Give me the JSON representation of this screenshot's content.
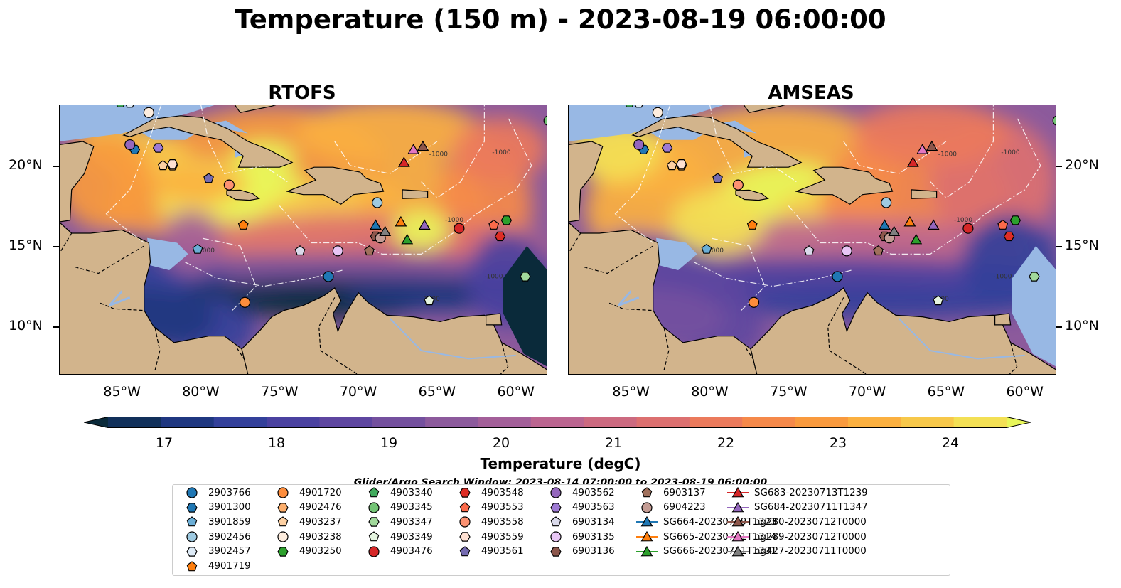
{
  "title": "Temperature (150 m) - 2023-08-19 06:00:00",
  "panels": [
    {
      "title": "RTOFS",
      "variant": "rtofs"
    },
    {
      "title": "AMSEAS",
      "variant": "amseas"
    }
  ],
  "x_ticks": [
    "85°W",
    "80°W",
    "75°W",
    "70°W",
    "65°W",
    "60°W"
  ],
  "x_tick_lons": [
    -85,
    -80,
    -75,
    -70,
    -65,
    -60
  ],
  "y_ticks": [
    "20°N",
    "15°N",
    "10°N"
  ],
  "y_tick_lats": [
    20,
    15,
    10
  ],
  "extent": {
    "lon": [
      -89,
      -58
    ],
    "lat": [
      7,
      23.8
    ]
  },
  "colorbar": {
    "label": "Temperature (degC)",
    "ticks": [
      "17",
      "18",
      "19",
      "20",
      "21",
      "22",
      "23",
      "24"
    ],
    "range": [
      16.5,
      24.5
    ],
    "colors": [
      "#0a2a3a",
      "#11305a",
      "#1f3780",
      "#33409a",
      "#4a41a0",
      "#5e46a0",
      "#74509e",
      "#8c5a9c",
      "#a35f99",
      "#bb6590",
      "#cc6a80",
      "#dc7070",
      "#eb7a5c",
      "#f5894a",
      "#f99a3e",
      "#fbb040",
      "#f7c84a",
      "#f3e055",
      "#e8f75a"
    ]
  },
  "search_window": "Glider/Argo Search Window: 2023-08-14 07:00:00 to 2023-08-19 06:00:00",
  "land_color": "#d2b48c",
  "ocean_color": "#98b8e4",
  "legend": [
    {
      "label": "2903766",
      "marker": "circle",
      "color": "#1f77b4",
      "line": false
    },
    {
      "label": "3901300",
      "marker": "hexagon",
      "color": "#1f77b4",
      "line": false
    },
    {
      "label": "3901859",
      "marker": "pentagon",
      "color": "#6baed6",
      "line": false
    },
    {
      "label": "3902456",
      "marker": "circle",
      "color": "#9ecae1",
      "line": false
    },
    {
      "label": "3902457",
      "marker": "hexagon",
      "color": "#deebf7",
      "line": false
    },
    {
      "label": "4901719",
      "marker": "pentagon",
      "color": "#ff7f0e",
      "line": false
    },
    {
      "label": "4901720",
      "marker": "circle",
      "color": "#fd8d3c",
      "line": false
    },
    {
      "label": "4902476",
      "marker": "hexagon",
      "color": "#fdae6b",
      "line": false
    },
    {
      "label": "4903237",
      "marker": "pentagon",
      "color": "#fdd0a2",
      "line": false
    },
    {
      "label": "4903238",
      "marker": "circle",
      "color": "#feedde",
      "line": false
    },
    {
      "label": "4903250",
      "marker": "hexagon",
      "color": "#2ca02c",
      "line": false
    },
    {
      "label": "4903340",
      "marker": "pentagon",
      "color": "#41ab5d",
      "line": false
    },
    {
      "label": "4903345",
      "marker": "circle",
      "color": "#74c476",
      "line": false
    },
    {
      "label": "4903347",
      "marker": "hexagon",
      "color": "#a1d99b",
      "line": false
    },
    {
      "label": "4903349",
      "marker": "pentagon",
      "color": "#e5f5e0",
      "line": false
    },
    {
      "label": "4903476",
      "marker": "circle",
      "color": "#d62728",
      "line": false
    },
    {
      "label": "4903548",
      "marker": "hexagon",
      "color": "#de2d26",
      "line": false
    },
    {
      "label": "4903553",
      "marker": "pentagon",
      "color": "#fb6a4a",
      "line": false
    },
    {
      "label": "4903558",
      "marker": "circle",
      "color": "#fc9272",
      "line": false
    },
    {
      "label": "4903559",
      "marker": "hexagon",
      "color": "#fee0d2",
      "line": false
    },
    {
      "label": "4903561",
      "marker": "pentagon",
      "color": "#756bb1",
      "line": false
    },
    {
      "label": "4903562",
      "marker": "circle",
      "color": "#9467bd",
      "line": false
    },
    {
      "label": "4903563",
      "marker": "hexagon",
      "color": "#9e7ad4",
      "line": false
    },
    {
      "label": "6903134",
      "marker": "pentagon",
      "color": "#dadaeb",
      "line": false
    },
    {
      "label": "6903135",
      "marker": "circle",
      "color": "#e8c6f5",
      "line": false
    },
    {
      "label": "6903136",
      "marker": "hexagon",
      "color": "#8c564b",
      "line": false
    },
    {
      "label": "6903137",
      "marker": "pentagon",
      "color": "#a0705c",
      "line": false
    },
    {
      "label": "6904223",
      "marker": "circle",
      "color": "#c49c94",
      "line": false
    },
    {
      "label": "SG664-20230719T1323",
      "marker": "triangle",
      "color": "#1f77b4",
      "line": true
    },
    {
      "label": "SG665-20230711T1314",
      "marker": "triangle",
      "color": "#ff7f0e",
      "line": true
    },
    {
      "label": "SG666-20230711T1331",
      "marker": "triangle",
      "color": "#2ca02c",
      "line": true
    },
    {
      "label": "SG683-20230713T1239",
      "marker": "triangle",
      "color": "#d62728",
      "line": true
    },
    {
      "label": "SG684-20230711T1347",
      "marker": "triangle",
      "color": "#9467bd",
      "line": true
    },
    {
      "label": "ng280-20230712T0000",
      "marker": "triangle",
      "color": "#8c564b",
      "line": true
    },
    {
      "label": "ng289-20230712T0000",
      "marker": "triangle",
      "color": "#e377c2",
      "line": true
    },
    {
      "label": "ng427-20230711T0000",
      "marker": "triangle",
      "color": "#7f7f7f",
      "line": true
    }
  ],
  "observations": [
    {
      "id": "2903766",
      "lon": -71.9,
      "lat": 13.1
    },
    {
      "id": "3901300",
      "lon": -84.2,
      "lat": 21.0
    },
    {
      "id": "3901859",
      "lon": -80.2,
      "lat": 14.8
    },
    {
      "id": "3902456",
      "lon": -68.8,
      "lat": 17.7
    },
    {
      "id": "3902457",
      "lon": -84.5,
      "lat": 23.9
    },
    {
      "id": "4901719",
      "lon": -77.3,
      "lat": 16.3
    },
    {
      "id": "4901720",
      "lon": -77.2,
      "lat": 11.5
    },
    {
      "id": "4902476",
      "lon": -81.8,
      "lat": 20.0
    },
    {
      "id": "4903237",
      "lon": -82.4,
      "lat": 20.0
    },
    {
      "id": "4903238",
      "lon": -83.3,
      "lat": 23.3
    },
    {
      "id": "4903250",
      "lon": -60.6,
      "lat": 16.6
    },
    {
      "id": "4903340",
      "lon": -85.1,
      "lat": 23.9
    },
    {
      "id": "4903345",
      "lon": -57.9,
      "lat": 22.8
    },
    {
      "id": "4903347",
      "lon": -59.4,
      "lat": 13.1
    },
    {
      "id": "4903349",
      "lon": -65.5,
      "lat": 11.6
    },
    {
      "id": "4903476",
      "lon": -63.6,
      "lat": 16.1
    },
    {
      "id": "4903548",
      "lon": -61.0,
      "lat": 15.6
    },
    {
      "id": "4903553",
      "lon": -61.4,
      "lat": 16.3
    },
    {
      "id": "4903558",
      "lon": -78.2,
      "lat": 18.8
    },
    {
      "id": "4903559",
      "lon": -81.8,
      "lat": 20.1
    },
    {
      "id": "4903561",
      "lon": -79.5,
      "lat": 19.2
    },
    {
      "id": "4903562",
      "lon": -84.5,
      "lat": 21.3
    },
    {
      "id": "4903563",
      "lon": -82.7,
      "lat": 21.1
    },
    {
      "id": "6903134",
      "lon": -73.7,
      "lat": 14.7
    },
    {
      "id": "6903135",
      "lon": -71.3,
      "lat": 14.7
    },
    {
      "id": "6903136",
      "lon": -68.9,
      "lat": 15.6
    },
    {
      "id": "6903137",
      "lon": -69.3,
      "lat": 14.7
    },
    {
      "id": "6904223",
      "lon": -68.6,
      "lat": 15.5
    }
  ],
  "gliders": [
    {
      "id": "SG664-20230719T1323",
      "lon": -68.9,
      "lat": 16.3
    },
    {
      "id": "SG665-20230711T1314",
      "lon": -67.3,
      "lat": 16.5
    },
    {
      "id": "SG666-20230711T1331",
      "lon": -66.9,
      "lat": 15.4
    },
    {
      "id": "SG683-20230713T1239",
      "lon": -67.1,
      "lat": 20.2
    },
    {
      "id": "SG684-20230711T1347",
      "lon": -65.8,
      "lat": 16.3
    },
    {
      "id": "ng280-20230712T0000",
      "lon": -65.9,
      "lat": 21.2
    },
    {
      "id": "ng289-20230712T0000",
      "lon": -66.5,
      "lat": 21.0
    },
    {
      "id": "ng427-20230711T0000",
      "lon": -68.3,
      "lat": 15.9
    }
  ]
}
